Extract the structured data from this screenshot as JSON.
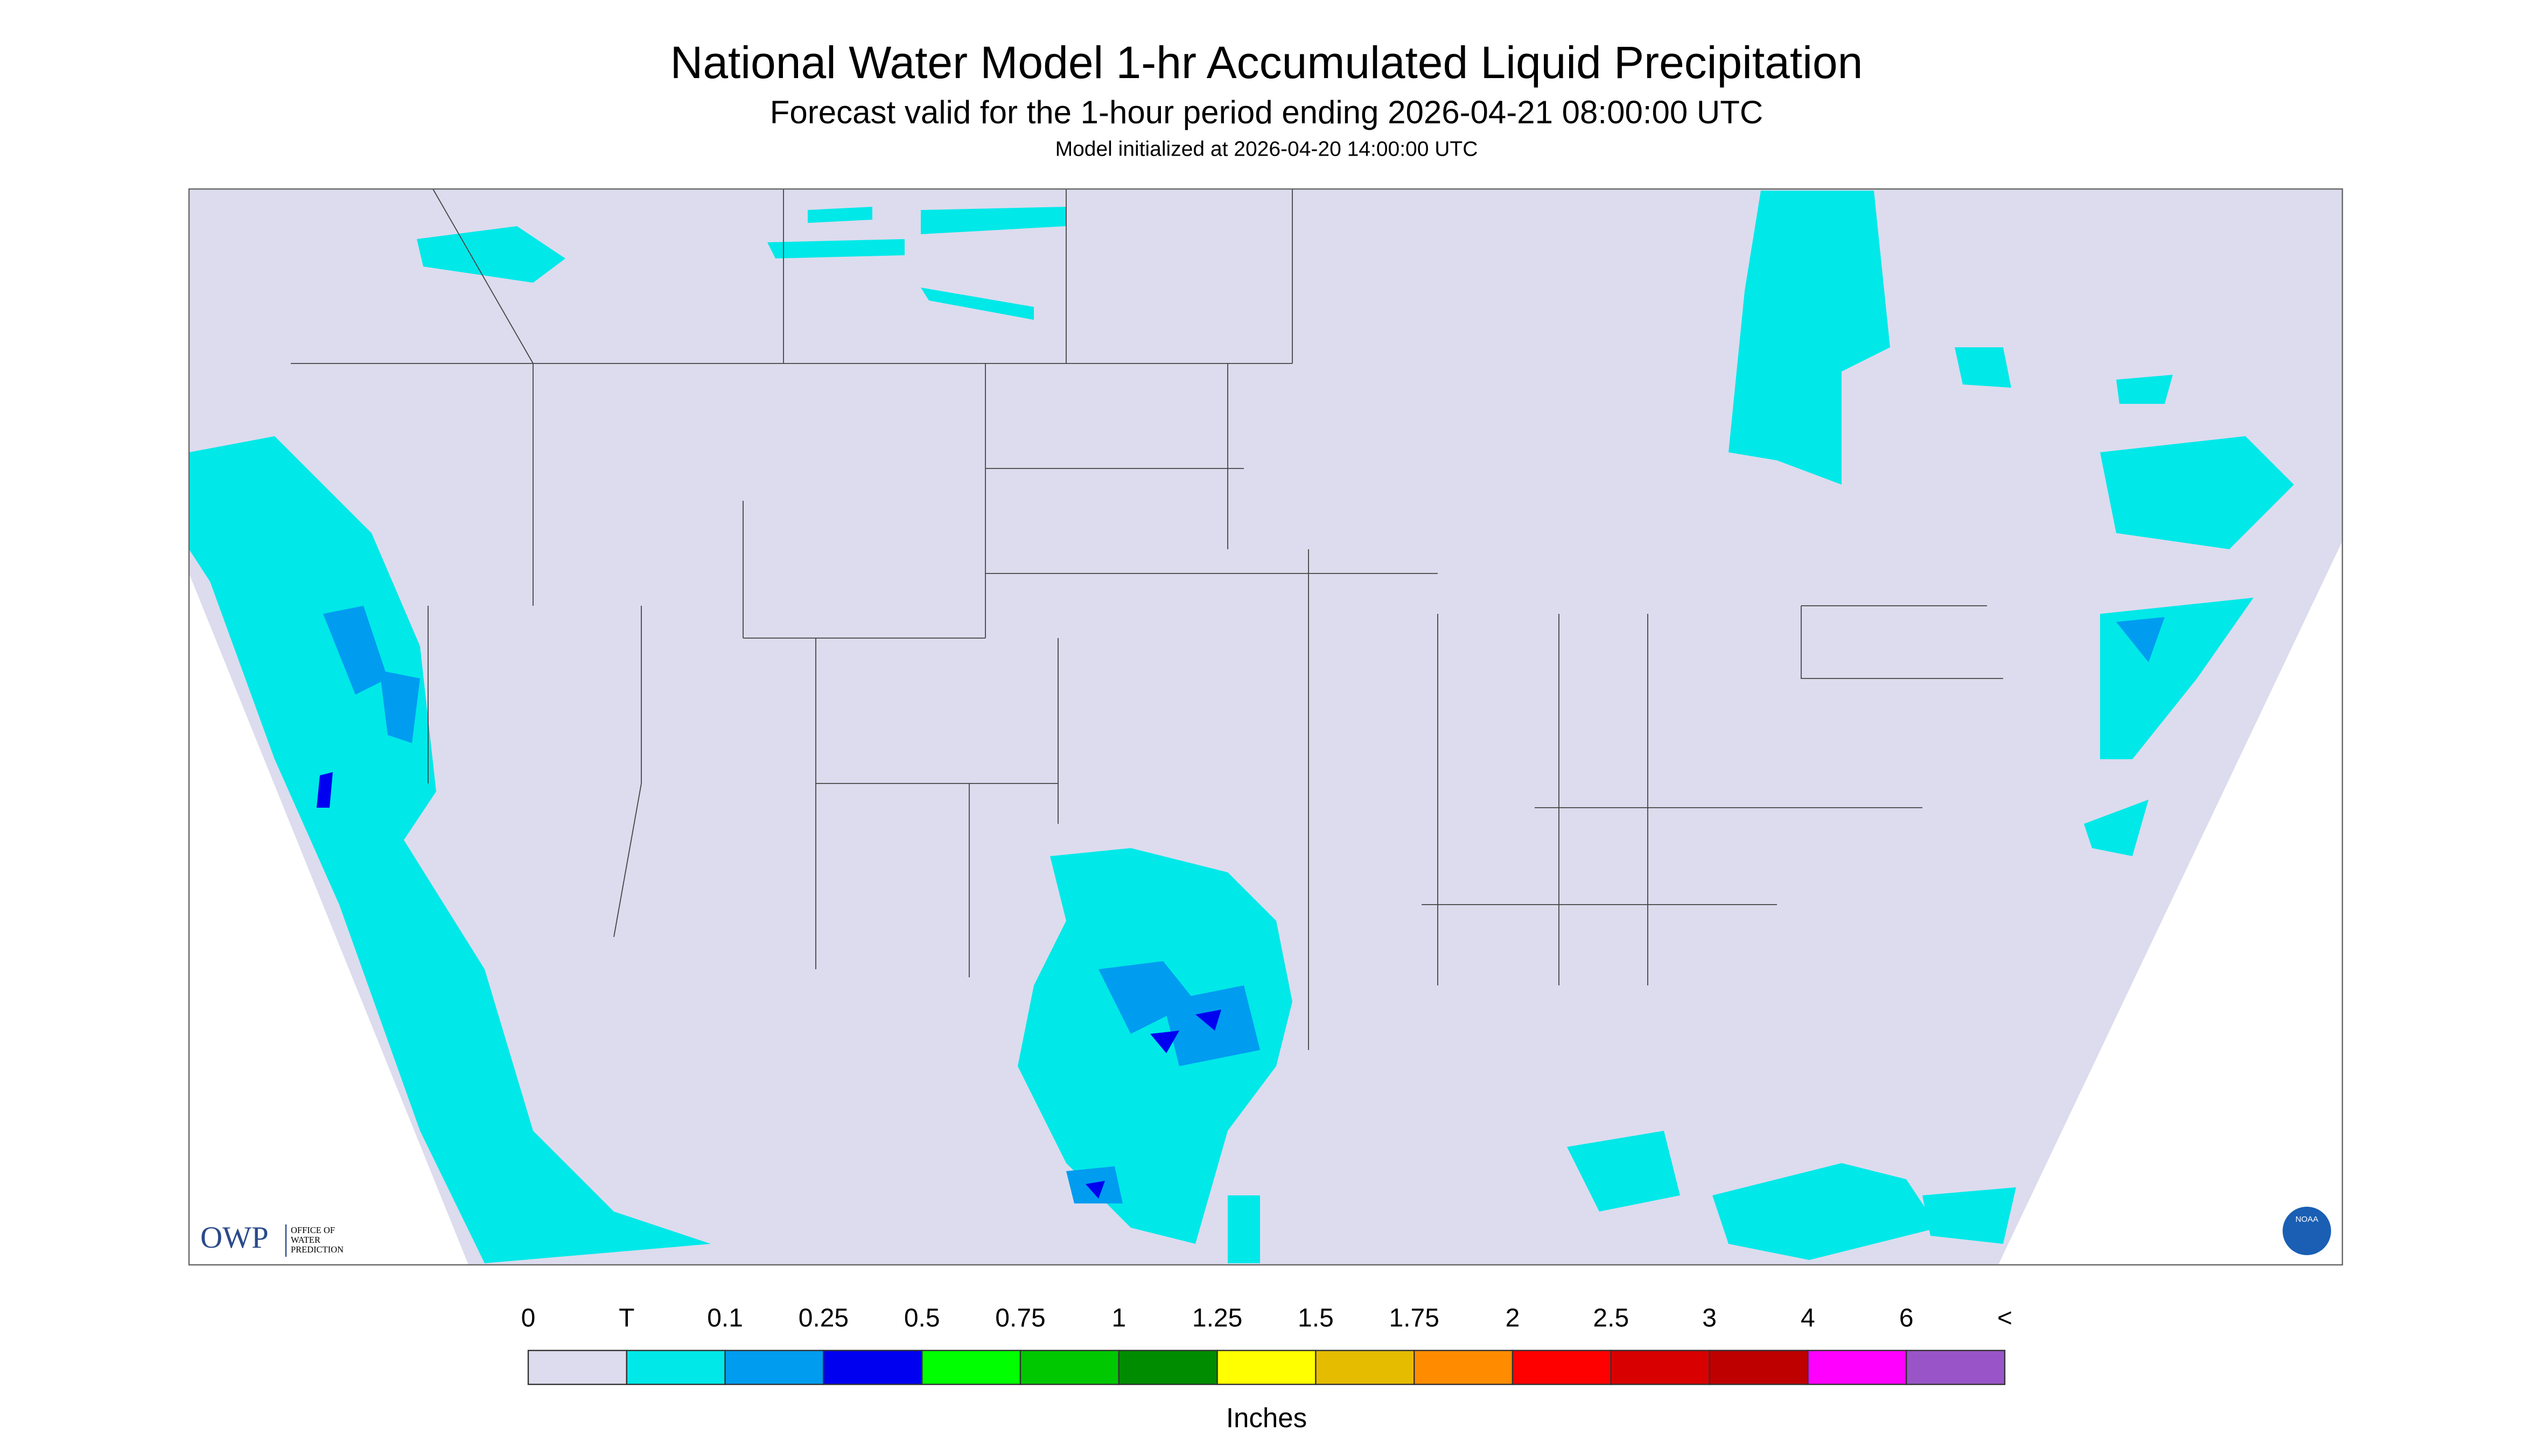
{
  "header": {
    "title": "National Water Model 1-hr Accumulated Liquid Precipitation",
    "subtitle": "Forecast valid for the 1-hour period ending 2026-04-21 08:00:00 UTC",
    "initialized": "Model initialized at 2026-04-20 14:00:00 UTC"
  },
  "logos": {
    "owp": "OWP",
    "owp_name": [
      "OFFICE OF",
      "WATER",
      "PREDICTION"
    ],
    "noaa": "NOAA"
  },
  "legend": {
    "labels": [
      "0",
      "T",
      "0.1",
      "0.25",
      "0.5",
      "0.75",
      "1",
      "1.25",
      "1.5",
      "1.75",
      "2",
      "2.5",
      "3",
      "4",
      "6",
      "<"
    ],
    "colors": [
      "#dcdcee",
      "#00e8e8",
      "#009cf0",
      "#0000f0",
      "#00ff00",
      "#00c800",
      "#008c00",
      "#ffff00",
      "#e6bc00",
      "#ff8c00",
      "#ff0000",
      "#d80000",
      "#be0000",
      "#ff00ff",
      "#9955c8"
    ],
    "unit": "Inches"
  }
}
